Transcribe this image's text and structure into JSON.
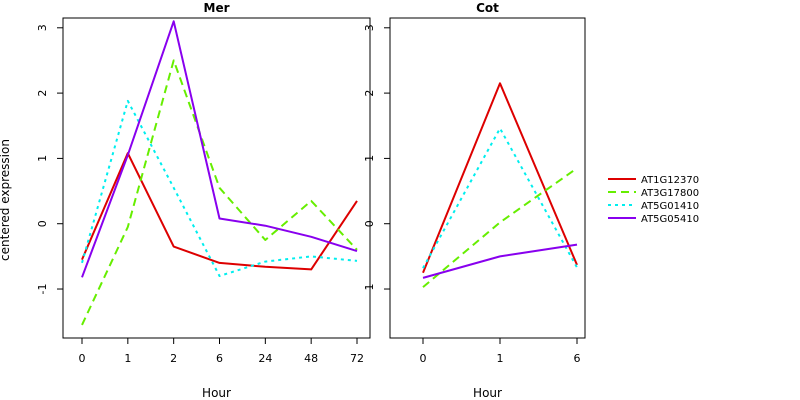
{
  "chart_data": [
    {
      "type": "line",
      "title": "Mer",
      "xlabel": "Hour",
      "ylabel": "centered expression",
      "categories": [
        "0",
        "1",
        "2",
        "6",
        "24",
        "48",
        "72"
      ],
      "ylim": [
        -1.75,
        3.15
      ],
      "yticks": [
        -1,
        0,
        1,
        2,
        3
      ],
      "series": [
        {
          "name": "AT1G12370",
          "values": [
            -0.55,
            1.08,
            -0.35,
            -0.6,
            -0.66,
            -0.7,
            0.35
          ]
        },
        {
          "name": "AT3G17800",
          "values": [
            -1.55,
            -0.05,
            2.5,
            0.55,
            -0.25,
            0.35,
            -0.4
          ]
        },
        {
          "name": "AT5G01410",
          "values": [
            -0.6,
            1.88,
            0.55,
            -0.8,
            -0.58,
            -0.5,
            -0.57
          ]
        },
        {
          "name": "AT5G05410",
          "values": [
            -0.82,
            1.05,
            3.1,
            0.08,
            -0.03,
            -0.2,
            -0.42
          ]
        }
      ]
    },
    {
      "type": "line",
      "title": "Cot",
      "xlabel": "Hour",
      "ylabel": "",
      "categories": [
        "0",
        "1",
        "6"
      ],
      "ylim": [
        -1.75,
        3.15
      ],
      "yticks": [
        -1,
        0,
        1,
        2,
        3
      ],
      "series": [
        {
          "name": "AT1G12370",
          "values": [
            -0.75,
            2.15,
            -0.63
          ]
        },
        {
          "name": "AT3G17800",
          "values": [
            -0.97,
            0.02,
            0.85
          ]
        },
        {
          "name": "AT5G01410",
          "values": [
            -0.68,
            1.46,
            -0.67
          ]
        },
        {
          "name": "AT5G05410",
          "values": [
            -0.83,
            -0.5,
            -0.32
          ]
        }
      ]
    }
  ],
  "legend": {
    "position": "right",
    "entries": [
      {
        "name": "AT1G12370",
        "color": "#dd0000",
        "dash": "solid"
      },
      {
        "name": "AT3G17800",
        "color": "#66ee00",
        "dash": "dashed"
      },
      {
        "name": "AT5G01410",
        "color": "#00eeee",
        "dash": "dotted"
      },
      {
        "name": "AT5G05410",
        "color": "#8800ee",
        "dash": "dotdash"
      }
    ]
  }
}
